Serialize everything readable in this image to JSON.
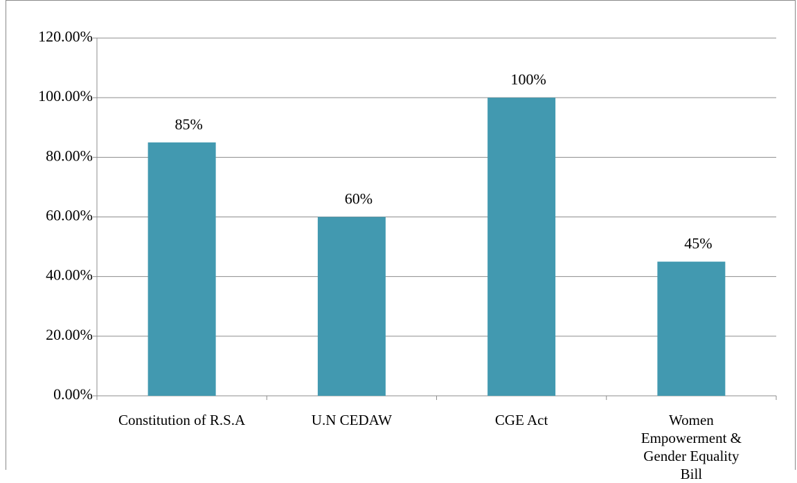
{
  "chart_data": {
    "type": "bar",
    "categories": [
      "Constitution of R.S.A",
      "U.N CEDAW",
      "CGE Act",
      "Women Empowerment & Gender Equality Bill"
    ],
    "values": [
      85,
      60,
      100,
      45
    ],
    "value_labels": [
      "85%",
      "60%",
      "100%",
      "45%"
    ],
    "color": "#4299b0",
    "ylim": [
      0,
      120
    ],
    "yticks": [
      {
        "value": 0,
        "label": "0.00%"
      },
      {
        "value": 20,
        "label": "20.00%"
      },
      {
        "value": 40,
        "label": "40.00%"
      },
      {
        "value": 60,
        "label": "60.00%"
      },
      {
        "value": 80,
        "label": "80.00%"
      },
      {
        "value": 100,
        "label": "100.00%"
      },
      {
        "value": 120,
        "label": "120.00%"
      }
    ],
    "grid": true
  }
}
